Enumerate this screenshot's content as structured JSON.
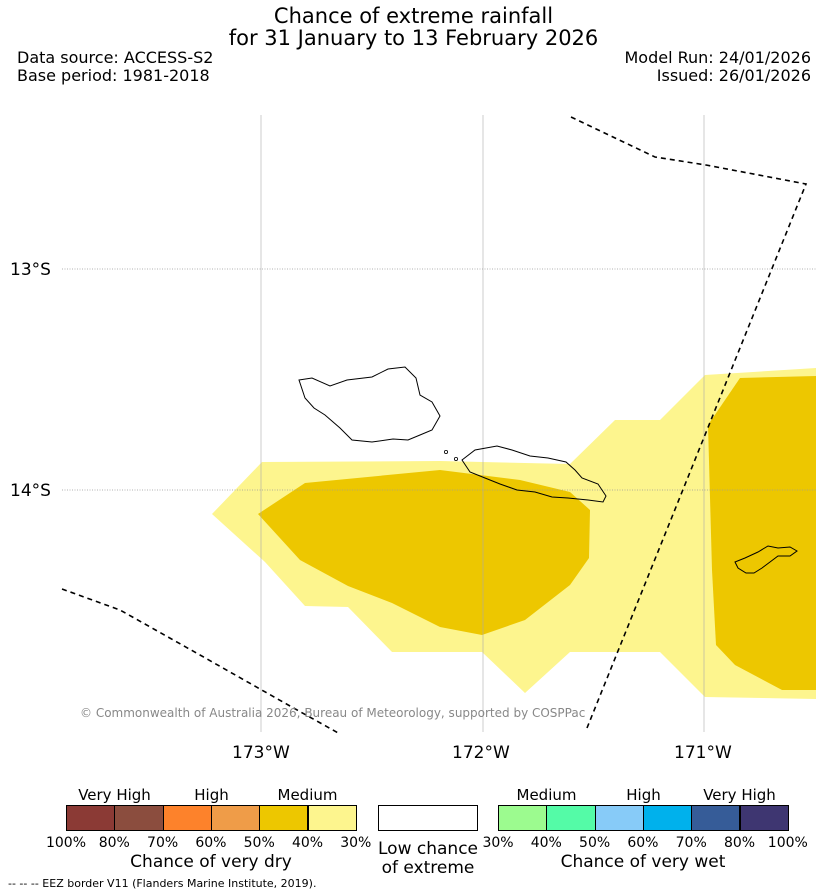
{
  "header": {
    "title_line1": "Chance of extreme rainfall",
    "title_line2": "for 31 January to 13 February 2026",
    "data_source": "Data source: ACCESS-S2",
    "base_period": "Base period: 1981-2018",
    "model_run": "Model Run: 24/01/2026",
    "issued": "Issued: 26/01/2026"
  },
  "map": {
    "lat_labels": [
      "13°S",
      "14°S"
    ],
    "lon_labels": [
      "173°W",
      "172°W",
      "171°W"
    ],
    "credit": "© Commonwealth of Australia 2026, Bureau of Meteorology, supported by COSPPac",
    "colors": {
      "medium_dry_light": "#fdf58e",
      "medium_dry_dark": "#edc700",
      "eez_line": "#000000"
    }
  },
  "legend": {
    "dry": {
      "headers": [
        "Very High",
        "High",
        "Medium"
      ],
      "swatches": [
        "#8b3a35",
        "#8b4d3e",
        "#fd822b",
        "#ef9c48",
        "#edc700",
        "#fdf58e"
      ],
      "ticks": [
        "100%",
        "80%",
        "70%",
        "60%",
        "50%",
        "40%",
        "30%"
      ],
      "caption": "Chance of very dry"
    },
    "low": {
      "caption_line1": "Low chance",
      "caption_line2": "of extreme"
    },
    "wet": {
      "headers": [
        "Medium",
        "High",
        "Very High"
      ],
      "swatches": [
        "#9cfb8f",
        "#54fba7",
        "#87cbf8",
        "#00b1ec",
        "#365c98",
        "#3e3671"
      ],
      "ticks": [
        "30%",
        "40%",
        "50%",
        "60%",
        "70%",
        "80%",
        "100%"
      ],
      "caption": "Chance of very wet"
    }
  },
  "footer": "-- -- -- EEZ border V11 (Flanders Marine Institute, 2019)."
}
